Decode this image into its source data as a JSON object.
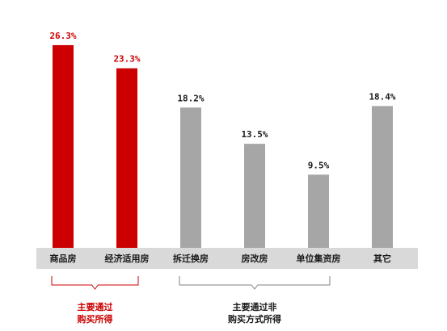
{
  "chart_data": {
    "type": "bar",
    "title": "",
    "xlabel": "",
    "ylabel": "",
    "ylim": [
      0,
      28
    ],
    "grid": false,
    "legend": "none",
    "categories": [
      "商品房",
      "经济适用房",
      "拆迁换房",
      "房改房",
      "单位集资房",
      "其它"
    ],
    "values": [
      26.3,
      23.3,
      18.2,
      13.5,
      9.5,
      18.4
    ],
    "value_labels": [
      "26.3%",
      "23.3%",
      "18.2%",
      "13.5%",
      "9.5%",
      "18.4%"
    ],
    "bar_groups": [
      "highlight",
      "highlight",
      "normal",
      "normal",
      "normal",
      "normal"
    ],
    "groups": [
      {
        "id": "highlight",
        "label_line1": "主要通过",
        "label_line2": "购买所得",
        "first": 0,
        "last": 1
      },
      {
        "id": "normal",
        "label_line1": "主要通过非",
        "label_line2": "购买方式所得",
        "first": 2,
        "last": 4
      }
    ],
    "colors": {
      "highlight": "#cc0000",
      "normal": "#a6a6a6",
      "axis_band": "#d9d9d9",
      "highlight_text": "#cc0000",
      "normal_text": "#1a1a1a",
      "bracket_highlight": "#cc0000",
      "bracket_normal": "#808080"
    }
  }
}
